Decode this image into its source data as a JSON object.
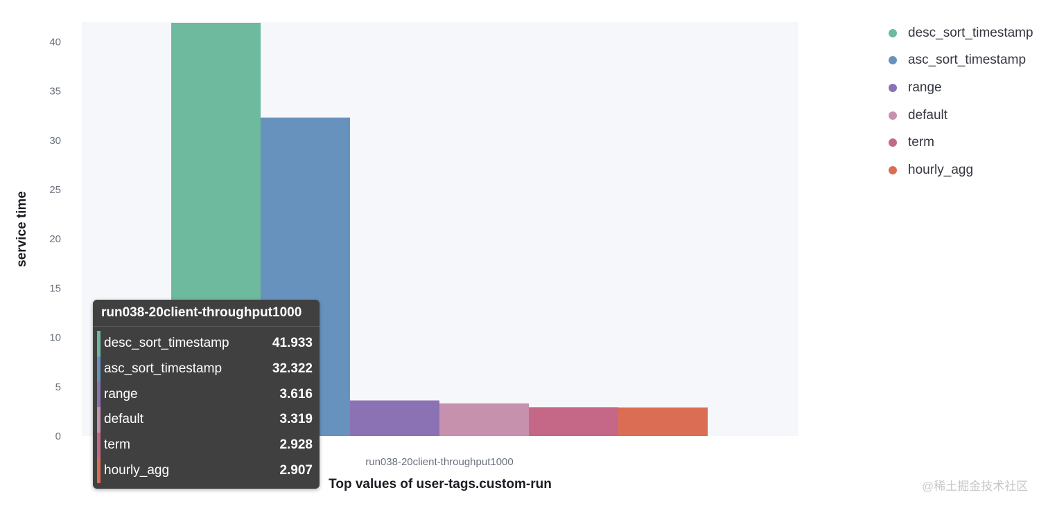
{
  "chart_data": {
    "type": "bar",
    "xlabel": "Top values of user-tags.custom-run",
    "ylabel": "service time",
    "ylim": [
      0,
      42
    ],
    "yticks": [
      0,
      5,
      10,
      15,
      20,
      25,
      30,
      35,
      40
    ],
    "categories": [
      "run038-20client-throughput1000"
    ],
    "series": [
      {
        "name": "desc_sort_timestamp",
        "values": [
          41.933
        ],
        "color": "#6dba9e"
      },
      {
        "name": "asc_sort_timestamp",
        "values": [
          32.322
        ],
        "color": "#6892be"
      },
      {
        "name": "range",
        "values": [
          3.616
        ],
        "color": "#8b72b5"
      },
      {
        "name": "default",
        "values": [
          3.319
        ],
        "color": "#c691ad"
      },
      {
        "name": "term",
        "values": [
          2.928
        ],
        "color": "#c56787"
      },
      {
        "name": "hourly_agg",
        "values": [
          2.907
        ],
        "color": "#dc6d55"
      }
    ],
    "legend_position": "right",
    "grid": false
  },
  "tooltip": {
    "title": "run038-20client-throughput1000",
    "rows": [
      {
        "name": "desc_sort_timestamp",
        "value": "41.933"
      },
      {
        "name": "asc_sort_timestamp",
        "value": "32.322"
      },
      {
        "name": "range",
        "value": "3.616"
      },
      {
        "name": "default",
        "value": "3.319"
      },
      {
        "name": "term",
        "value": "2.928"
      },
      {
        "name": "hourly_agg",
        "value": "2.907"
      }
    ]
  },
  "watermark": "@稀土掘金技术社区",
  "colors": {
    "plot_background": "#f5f7fa",
    "tooltip_background": "#404040"
  }
}
